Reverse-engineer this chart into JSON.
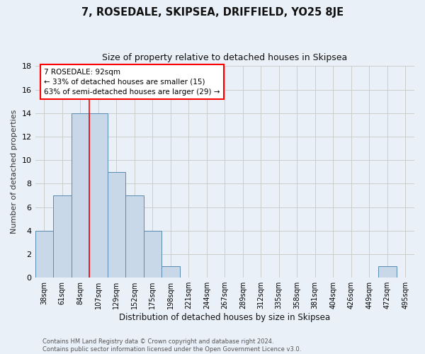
{
  "title": "7, ROSEDALE, SKIPSEA, DRIFFIELD, YO25 8JE",
  "subtitle": "Size of property relative to detached houses in Skipsea",
  "xlabel": "Distribution of detached houses by size in Skipsea",
  "ylabel": "Number of detached properties",
  "bin_labels": [
    "38sqm",
    "61sqm",
    "84sqm",
    "107sqm",
    "129sqm",
    "152sqm",
    "175sqm",
    "198sqm",
    "221sqm",
    "244sqm",
    "267sqm",
    "289sqm",
    "312sqm",
    "335sqm",
    "358sqm",
    "381sqm",
    "404sqm",
    "426sqm",
    "449sqm",
    "472sqm",
    "495sqm"
  ],
  "bar_values": [
    4,
    7,
    14,
    14,
    9,
    7,
    4,
    1,
    0,
    0,
    0,
    0,
    0,
    0,
    0,
    0,
    0,
    0,
    0,
    1,
    0
  ],
  "bar_color": "#c8d8e8",
  "bar_edge_color": "#5a8ab0",
  "grid_color": "#cccccc",
  "bg_color": "#eaf0f8",
  "red_line_x": 2.5,
  "annotation_text": "7 ROSEDALE: 92sqm\n← 33% of detached houses are smaller (15)\n63% of semi-detached houses are larger (29) →",
  "annotation_box_color": "white",
  "annotation_box_edge": "red",
  "ylim": [
    0,
    18
  ],
  "yticks": [
    0,
    2,
    4,
    6,
    8,
    10,
    12,
    14,
    16,
    18
  ],
  "footer_line1": "Contains HM Land Registry data © Crown copyright and database right 2024.",
  "footer_line2": "Contains public sector information licensed under the Open Government Licence v3.0."
}
